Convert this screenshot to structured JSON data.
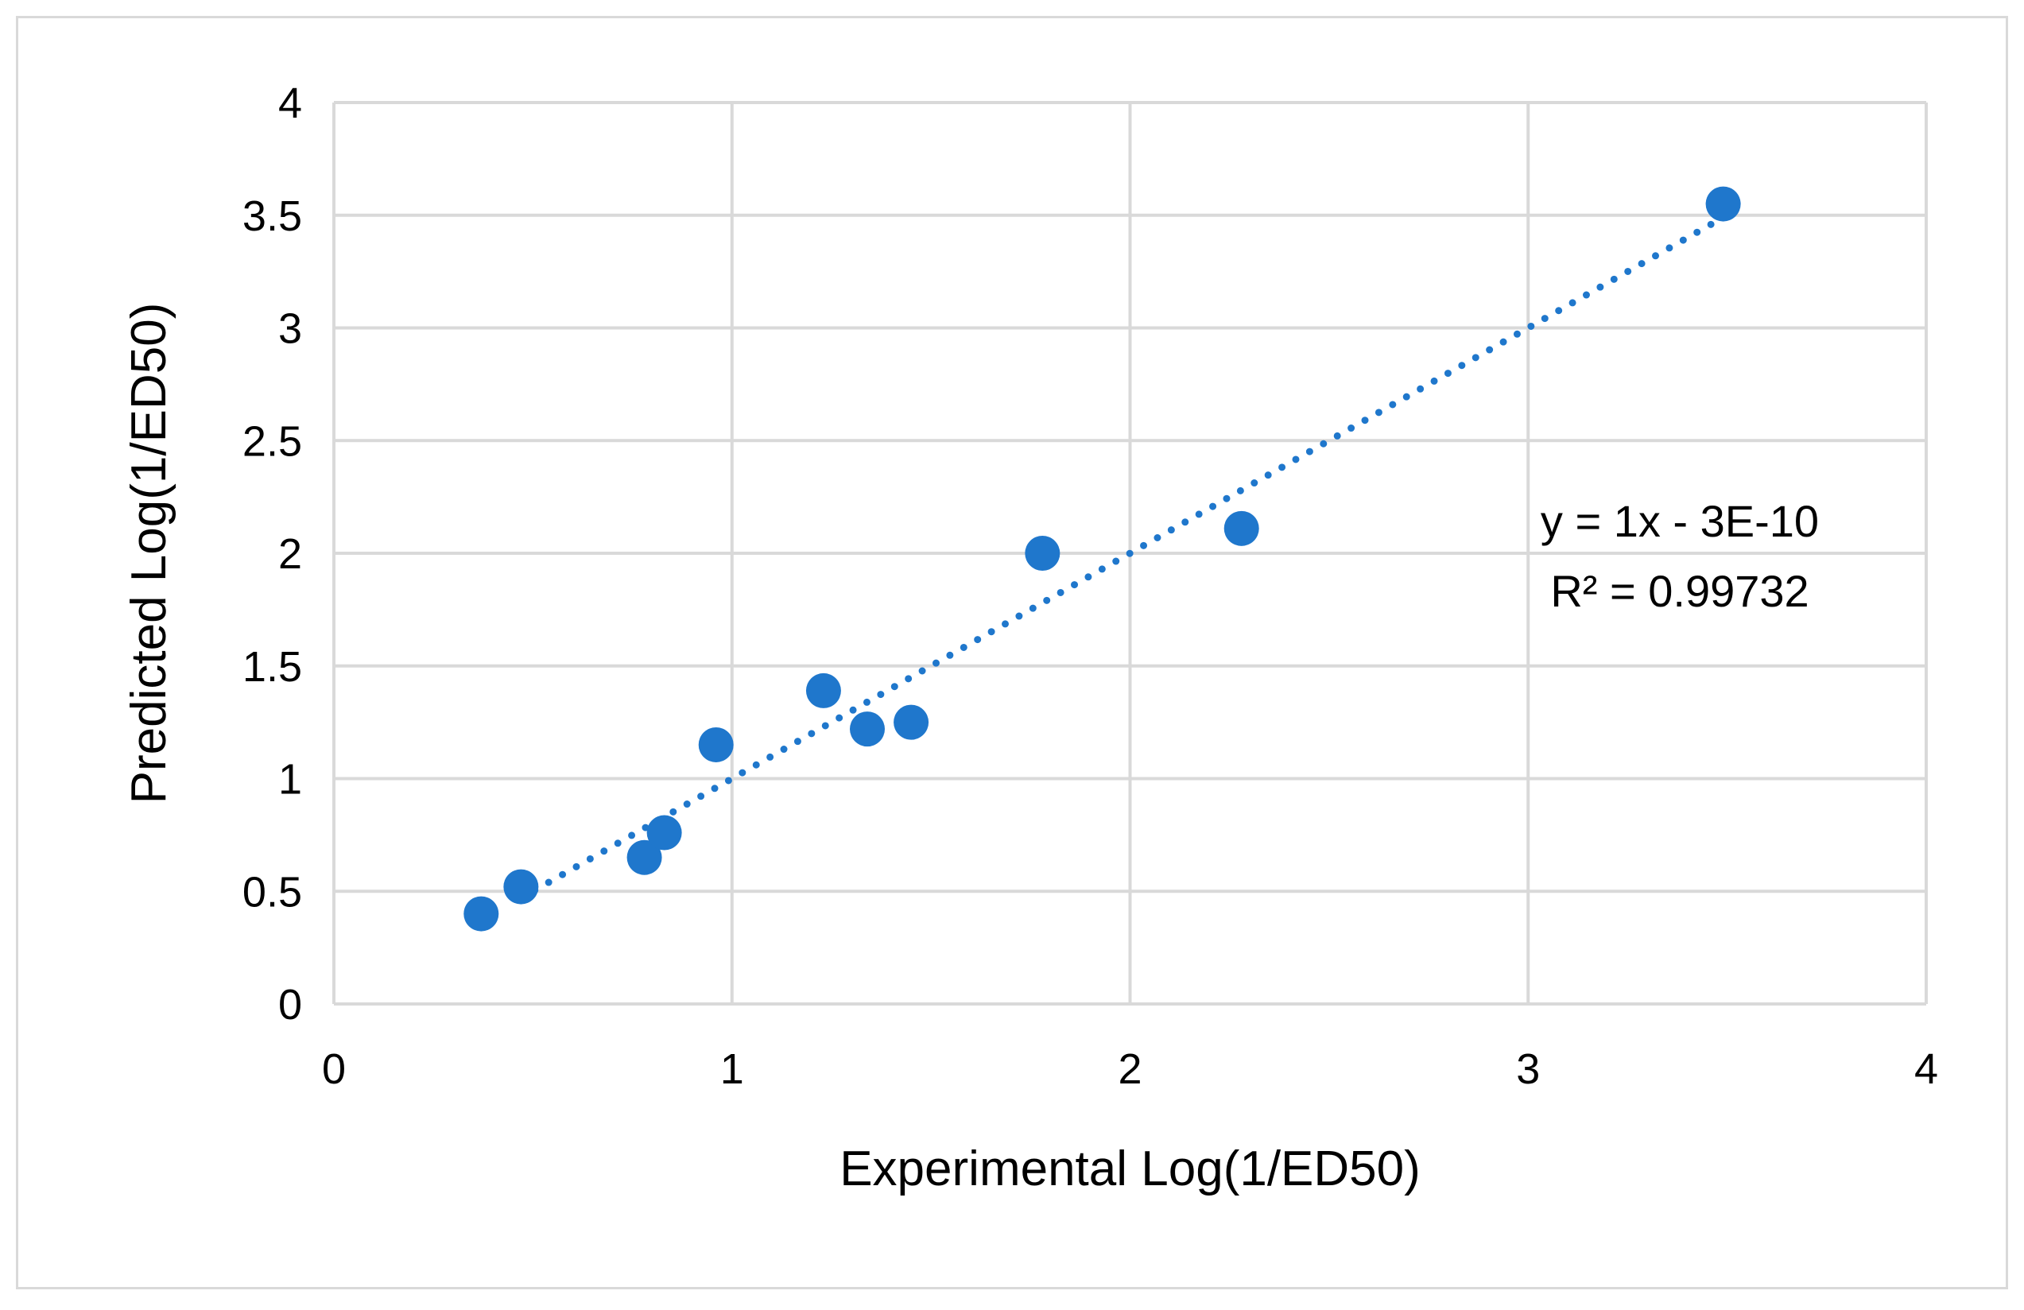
{
  "chart_data": {
    "type": "scatter",
    "title": "",
    "xlabel": "Experimental Log(1/ED50)",
    "ylabel": "Predicted Log(1/ED50)",
    "xlim": [
      0,
      4
    ],
    "ylim": [
      0,
      4
    ],
    "x_ticks": [
      0,
      1,
      2,
      3,
      4
    ],
    "y_ticks": [
      0,
      0.5,
      1,
      1.5,
      2,
      2.5,
      3,
      3.5,
      4
    ],
    "x_tick_labels": [
      "0",
      "1",
      "2",
      "3",
      "4"
    ],
    "y_tick_labels": [
      "0",
      "0.5",
      "1",
      "1.5",
      "2",
      "2.5",
      "3",
      "3.5",
      "4"
    ],
    "grid": true,
    "legend": "none",
    "series": [
      {
        "points": [
          {
            "x": 0.37,
            "y": 0.4
          },
          {
            "x": 0.47,
            "y": 0.52
          },
          {
            "x": 0.78,
            "y": 0.65
          },
          {
            "x": 0.83,
            "y": 0.76
          },
          {
            "x": 0.96,
            "y": 1.15
          },
          {
            "x": 1.23,
            "y": 1.39
          },
          {
            "x": 1.34,
            "y": 1.22
          },
          {
            "x": 1.45,
            "y": 1.25
          },
          {
            "x": 1.78,
            "y": 2.0
          },
          {
            "x": 2.28,
            "y": 2.11
          },
          {
            "x": 3.49,
            "y": 3.55
          }
        ],
        "color": "#1f77cc"
      }
    ],
    "trendline": {
      "type": "linear",
      "style": "dotted",
      "color": "#1f77cc",
      "x_range": [
        0.47,
        3.49
      ],
      "slope": 1,
      "intercept": 0
    },
    "annotations": {
      "equation": "y = 1x - 3E-10",
      "r_squared_label": "R² = 0.99732"
    }
  }
}
